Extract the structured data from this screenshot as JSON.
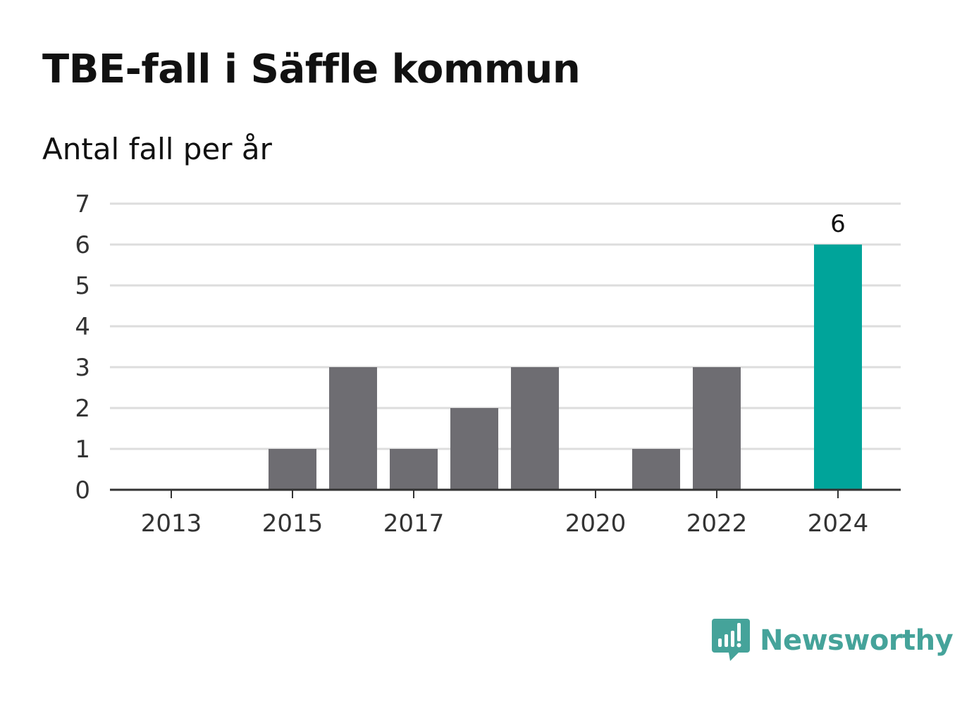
{
  "header": {
    "title": "TBE-fall i Säffle kommun",
    "subtitle": "Antal fall per år"
  },
  "brand": {
    "name": "Newsworthy",
    "icon": "bar-chart-speech-bubble-icon",
    "color": "#45a39a"
  },
  "chart_data": {
    "type": "bar",
    "categories": [
      "2013",
      "2014",
      "2015",
      "2016",
      "2017",
      "2018",
      "2019",
      "2020",
      "2021",
      "2022",
      "2023",
      "2024"
    ],
    "values": [
      0,
      0,
      1,
      3,
      1,
      2,
      3,
      0,
      1,
      3,
      0,
      6
    ],
    "x_tick_labels": [
      "2013",
      "2015",
      "2017",
      "2020",
      "2022",
      "2024"
    ],
    "y_ticks": [
      0,
      1,
      2,
      3,
      4,
      5,
      6,
      7
    ],
    "ylim": [
      0,
      7
    ],
    "grid": true,
    "legend": "none",
    "data_labels": [
      {
        "category": "2024",
        "text": "6"
      }
    ],
    "colors": {
      "default_bar": "#6e6d72",
      "highlight_bar": "#00a49a",
      "highlight_category": "2024",
      "grid": "#dddddd",
      "axis": "#333333"
    }
  }
}
